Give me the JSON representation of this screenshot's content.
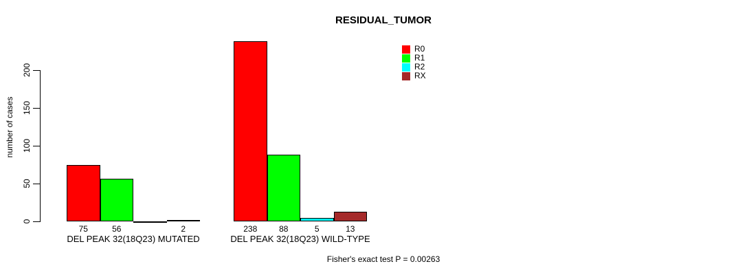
{
  "chart_data": {
    "type": "bar",
    "title": "RESIDUAL_TUMOR",
    "ylabel": "number of cases",
    "xlabel": "",
    "yticks": [
      0,
      50,
      100,
      150,
      200
    ],
    "ylim": [
      0,
      240
    ],
    "grid": false,
    "legend_position": "top-right",
    "categories": [
      "DEL PEAK 32(18Q23) MUTATED",
      "DEL PEAK 32(18Q23) WILD-TYPE"
    ],
    "series": [
      {
        "name": "R0",
        "color": "#ff0000",
        "values": [
          75,
          238
        ]
      },
      {
        "name": "R1",
        "color": "#00ff00",
        "values": [
          56,
          88
        ]
      },
      {
        "name": "R2",
        "color": "#00ffff",
        "values": [
          0,
          5
        ]
      },
      {
        "name": "RX",
        "color": "#a52a2a",
        "values": [
          2,
          13
        ]
      }
    ],
    "bar_value_labels": [
      [
        "75",
        "56",
        "",
        "2"
      ],
      [
        "238",
        "88",
        "5",
        "13"
      ]
    ],
    "footer": "Fisher's exact test P = 0.00263"
  }
}
